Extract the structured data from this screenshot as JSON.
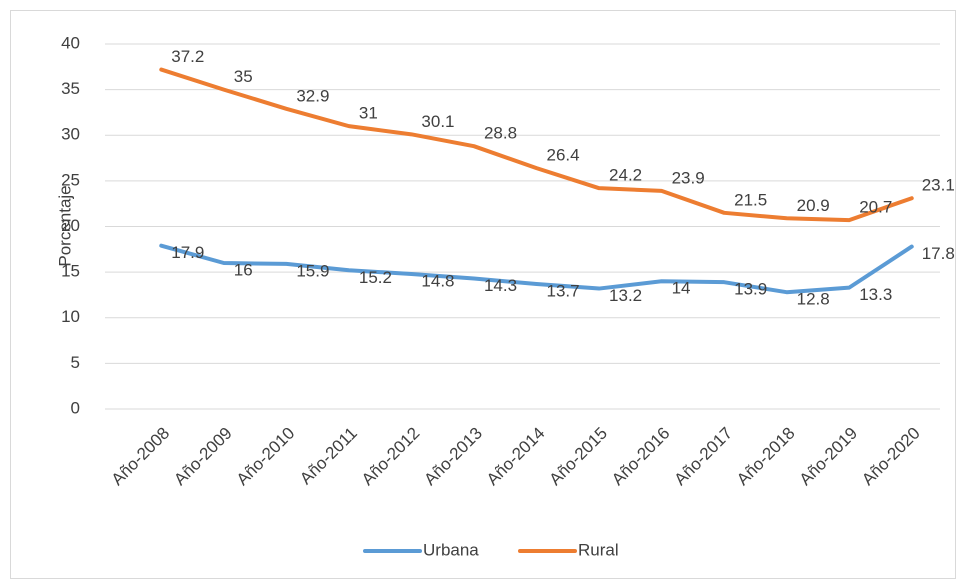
{
  "chart_data": {
    "type": "line",
    "y_label": "Porcentaje",
    "categories": [
      "Año-2008",
      "Año-2009",
      "Año-2010",
      "Año-2011",
      "Año-2012",
      "Año-2013",
      "Año-2014",
      "Año-2015",
      "Año-2016",
      "Año-2017",
      "Año-2018",
      "Año-2019",
      "Año-2020"
    ],
    "series": [
      {
        "name": "Urbana",
        "color": "#5b9bd5",
        "values": [
          17.9,
          16,
          15.9,
          15.2,
          14.8,
          14.3,
          13.7,
          13.2,
          14,
          13.9,
          12.8,
          13.3,
          17.8
        ]
      },
      {
        "name": "Rural",
        "color": "#ed7d31",
        "values": [
          37.2,
          35,
          32.9,
          31,
          30.1,
          28.8,
          26.4,
          24.2,
          23.9,
          21.5,
          20.9,
          20.7,
          23.1
        ]
      }
    ],
    "ylim": [
      0,
      40
    ],
    "yticks": [
      0,
      5,
      10,
      15,
      20,
      25,
      30,
      35,
      40
    ],
    "grid": true,
    "legend": "bottom"
  }
}
